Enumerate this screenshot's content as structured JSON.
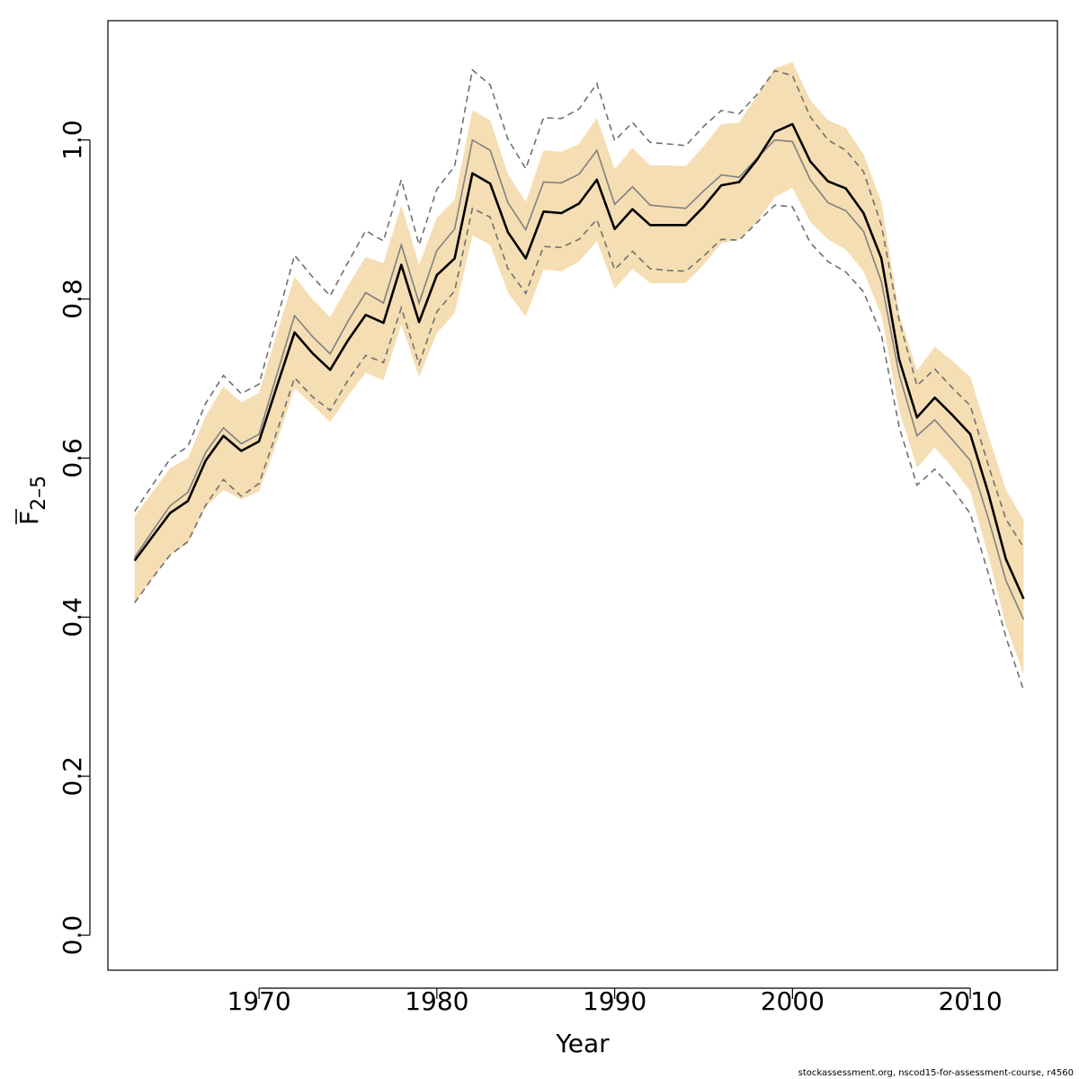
{
  "chart_data": {
    "type": "line",
    "xlabel": "Year",
    "ylabel": {
      "main": "F",
      "sub": "2–5"
    },
    "xlim": [
      1961.5,
      2014.9
    ],
    "ylim": [
      -0.044,
      1.15
    ],
    "x_ticks": [
      1970,
      1980,
      1990,
      2000,
      2010
    ],
    "x_tick_labels": [
      "1970",
      "1980",
      "1990",
      "2000",
      "2010"
    ],
    "y_ticks": [
      0.0,
      0.2,
      0.4,
      0.6,
      0.8,
      1.0
    ],
    "y_tick_labels": [
      "0.0",
      "0.2",
      "0.4",
      "0.6",
      "0.8",
      "1.0"
    ],
    "grid": false,
    "colors": {
      "band": "#f5deb3",
      "estimate": "#000000",
      "comparison": "#808080",
      "comparison_bounds": "#707070"
    },
    "x": [
      1963,
      1964,
      1965,
      1966,
      1967,
      1968,
      1969,
      1970,
      1971,
      1972,
      1973,
      1974,
      1975,
      1976,
      1977,
      1978,
      1979,
      1980,
      1981,
      1982,
      1983,
      1984,
      1985,
      1986,
      1987,
      1988,
      1989,
      1990,
      1991,
      1992,
      1993,
      1994,
      1995,
      1996,
      1997,
      1998,
      1999,
      2000,
      2001,
      2002,
      2003,
      2004,
      2005,
      2006,
      2007,
      2008,
      2009,
      2010,
      2011,
      2012,
      2013
    ],
    "series": [
      {
        "role": "confidence-band",
        "upper": [
          0.527,
          0.557,
          0.587,
          0.6,
          0.653,
          0.69,
          0.67,
          0.682,
          0.757,
          0.828,
          0.8,
          0.777,
          0.817,
          0.853,
          0.845,
          0.918,
          0.843,
          0.902,
          0.925,
          1.037,
          1.025,
          0.957,
          0.922,
          0.987,
          0.985,
          0.995,
          1.028,
          0.963,
          0.99,
          0.968,
          0.968,
          0.967,
          0.992,
          1.02,
          1.022,
          1.055,
          1.09,
          1.098,
          1.05,
          1.025,
          1.015,
          0.982,
          0.922,
          0.782,
          0.71,
          0.74,
          0.722,
          0.702,
          0.63,
          0.56,
          0.522
        ],
        "lower": [
          0.418,
          0.448,
          0.478,
          0.493,
          0.538,
          0.56,
          0.548,
          0.558,
          0.62,
          0.688,
          0.667,
          0.645,
          0.678,
          0.707,
          0.698,
          0.768,
          0.702,
          0.757,
          0.782,
          0.88,
          0.868,
          0.808,
          0.778,
          0.837,
          0.835,
          0.847,
          0.873,
          0.813,
          0.838,
          0.82,
          0.82,
          0.82,
          0.843,
          0.87,
          0.875,
          0.897,
          0.928,
          0.94,
          0.897,
          0.875,
          0.862,
          0.835,
          0.78,
          0.66,
          0.588,
          0.613,
          0.588,
          0.558,
          0.478,
          0.39,
          0.328
        ]
      },
      {
        "role": "estimate",
        "values": [
          0.471,
          0.501,
          0.531,
          0.546,
          0.597,
          0.628,
          0.609,
          0.621,
          0.69,
          0.758,
          0.732,
          0.711,
          0.748,
          0.78,
          0.77,
          0.843,
          0.771,
          0.83,
          0.851,
          0.958,
          0.945,
          0.884,
          0.851,
          0.91,
          0.908,
          0.92,
          0.95,
          0.888,
          0.913,
          0.893,
          0.893,
          0.893,
          0.916,
          0.943,
          0.947,
          0.975,
          1.01,
          1.02,
          0.973,
          0.948,
          0.939,
          0.908,
          0.851,
          0.724,
          0.651,
          0.676,
          0.654,
          0.63,
          0.557,
          0.473,
          0.423
        ]
      },
      {
        "role": "comparison",
        "values": [
          0.475,
          0.508,
          0.54,
          0.557,
          0.607,
          0.638,
          0.618,
          0.63,
          0.705,
          0.779,
          0.753,
          0.731,
          0.772,
          0.808,
          0.795,
          0.868,
          0.795,
          0.861,
          0.888,
          1.0,
          0.987,
          0.921,
          0.887,
          0.947,
          0.946,
          0.957,
          0.987,
          0.919,
          0.941,
          0.918,
          0.916,
          0.914,
          0.936,
          0.956,
          0.953,
          0.977,
          1.0,
          0.998,
          0.95,
          0.921,
          0.911,
          0.885,
          0.822,
          0.705,
          0.628,
          0.648,
          0.623,
          0.597,
          0.525,
          0.446,
          0.397
        ]
      },
      {
        "role": "comparison-upper",
        "values": [
          0.533,
          0.566,
          0.599,
          0.615,
          0.669,
          0.704,
          0.681,
          0.693,
          0.774,
          0.855,
          0.828,
          0.804,
          0.846,
          0.886,
          0.873,
          0.95,
          0.868,
          0.938,
          0.967,
          1.088,
          1.069,
          1.001,
          0.964,
          1.028,
          1.027,
          1.039,
          1.071,
          0.999,
          1.022,
          0.997,
          0.995,
          0.993,
          1.017,
          1.037,
          1.033,
          1.057,
          1.087,
          1.081,
          1.029,
          1.0,
          0.987,
          0.96,
          0.893,
          0.773,
          0.691,
          0.712,
          0.688,
          0.666,
          0.592,
          0.523,
          0.488
        ]
      },
      {
        "role": "comparison-lower",
        "values": [
          0.418,
          0.449,
          0.478,
          0.495,
          0.541,
          0.573,
          0.552,
          0.568,
          0.633,
          0.701,
          0.677,
          0.66,
          0.698,
          0.729,
          0.72,
          0.789,
          0.718,
          0.784,
          0.81,
          0.914,
          0.903,
          0.838,
          0.807,
          0.866,
          0.865,
          0.875,
          0.9,
          0.837,
          0.86,
          0.838,
          0.836,
          0.835,
          0.854,
          0.875,
          0.874,
          0.896,
          0.918,
          0.916,
          0.871,
          0.847,
          0.834,
          0.809,
          0.755,
          0.639,
          0.566,
          0.586,
          0.561,
          0.53,
          0.456,
          0.375,
          0.308
        ]
      }
    ]
  },
  "footer": {
    "credit": "stockassessment.org, nscod15-for-assessment-course, r4560"
  }
}
